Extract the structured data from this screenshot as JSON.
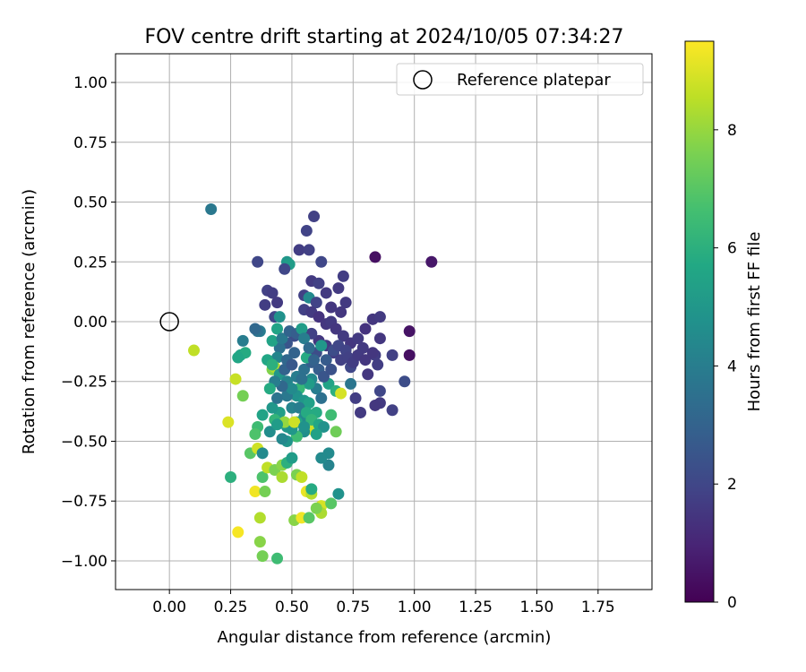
{
  "chart_data": {
    "type": "scatter",
    "title": "FOV centre drift starting at 2024/10/05 07:34:27",
    "xlabel": "Angular distance from reference (arcmin)",
    "ylabel": "Rotation from reference (arcmin)",
    "xlim": [
      -0.22,
      1.97
    ],
    "ylim": [
      -1.12,
      1.12
    ],
    "xticks": [
      "0.00",
      "0.25",
      "0.50",
      "0.75",
      "1.00",
      "1.25",
      "1.50",
      "1.75"
    ],
    "yticks": [
      "1.00",
      "0.75",
      "0.50",
      "0.25",
      "0.00",
      "−0.25",
      "−0.50",
      "−0.75",
      "−1.00"
    ],
    "grid": true,
    "legend": {
      "position": "top-right",
      "label": "Reference platepar"
    },
    "colorbar": {
      "label": "Hours from first FF file",
      "min": 0,
      "max": 9.5,
      "ticks": [
        "0",
        "2",
        "4",
        "6",
        "8"
      ],
      "colormap": "viridis"
    },
    "reference_point": {
      "x": 0.0,
      "y": 0.0
    },
    "points": [
      [
        0.17,
        0.47,
        3.8
      ],
      [
        0.1,
        -0.12,
        8.6
      ],
      [
        0.59,
        0.44,
        1.8
      ],
      [
        0.56,
        0.38,
        1.9
      ],
      [
        0.53,
        0.3,
        1.7
      ],
      [
        0.57,
        0.3,
        1.8
      ],
      [
        0.36,
        0.25,
        2.0
      ],
      [
        0.62,
        0.25,
        2.0
      ],
      [
        0.48,
        0.25,
        5.0
      ],
      [
        0.49,
        0.24,
        5.2
      ],
      [
        0.47,
        0.22,
        2.0
      ],
      [
        0.58,
        0.17,
        1.6
      ],
      [
        0.61,
        0.16,
        1.8
      ],
      [
        0.69,
        0.14,
        1.6
      ],
      [
        0.71,
        0.19,
        1.7
      ],
      [
        0.64,
        0.12,
        1.6
      ],
      [
        0.55,
        0.11,
        1.8
      ],
      [
        0.57,
        0.1,
        4.5
      ],
      [
        0.6,
        0.08,
        1.9
      ],
      [
        0.66,
        0.06,
        1.5
      ],
      [
        0.7,
        0.04,
        1.5
      ],
      [
        0.72,
        0.08,
        1.6
      ],
      [
        0.4,
        0.13,
        1.8
      ],
      [
        0.42,
        0.12,
        1.7
      ],
      [
        0.44,
        0.08,
        1.6
      ],
      [
        0.39,
        0.07,
        1.7
      ],
      [
        0.43,
        0.02,
        2.0
      ],
      [
        0.45,
        0.02,
        4.8
      ],
      [
        0.55,
        0.05,
        1.8
      ],
      [
        0.58,
        0.04,
        1.6
      ],
      [
        0.61,
        0.02,
        1.4
      ],
      [
        0.64,
        -0.01,
        1.5
      ],
      [
        0.66,
        0.0,
        1.6
      ],
      [
        0.68,
        -0.03,
        1.5
      ],
      [
        0.71,
        -0.06,
        1.6
      ],
      [
        0.74,
        -0.09,
        1.5
      ],
      [
        0.77,
        -0.07,
        1.6
      ],
      [
        0.8,
        -0.03,
        1.4
      ],
      [
        0.83,
        0.01,
        1.5
      ],
      [
        0.86,
        0.02,
        1.6
      ],
      [
        0.86,
        -0.07,
        1.5
      ],
      [
        0.79,
        -0.11,
        1.6
      ],
      [
        0.84,
        -0.14,
        1.7
      ],
      [
        0.91,
        -0.14,
        1.8
      ],
      [
        0.98,
        -0.04,
        0.5
      ],
      [
        0.98,
        -0.14,
        0.4
      ],
      [
        0.84,
        0.27,
        0.4
      ],
      [
        1.07,
        0.25,
        0.6
      ],
      [
        0.81,
        -0.22,
        1.5
      ],
      [
        0.86,
        -0.29,
        2.0
      ],
      [
        0.96,
        -0.25,
        2.2
      ],
      [
        0.91,
        -0.37,
        1.8
      ],
      [
        0.86,
        -0.34,
        1.6
      ],
      [
        0.84,
        -0.35,
        1.5
      ],
      [
        0.78,
        -0.38,
        1.6
      ],
      [
        0.76,
        -0.32,
        1.7
      ],
      [
        0.74,
        -0.26,
        3.7
      ],
      [
        0.74,
        -0.19,
        2.0
      ],
      [
        0.7,
        -0.16,
        1.8
      ],
      [
        0.67,
        -0.13,
        1.7
      ],
      [
        0.64,
        -0.1,
        1.6
      ],
      [
        0.61,
        -0.08,
        1.5
      ],
      [
        0.58,
        -0.05,
        1.8
      ],
      [
        0.54,
        -0.04,
        2.0
      ],
      [
        0.51,
        -0.06,
        2.2
      ],
      [
        0.48,
        -0.09,
        2.5
      ],
      [
        0.45,
        -0.11,
        3.5
      ],
      [
        0.44,
        -0.15,
        4.3
      ],
      [
        0.42,
        -0.08,
        5.5
      ],
      [
        0.44,
        -0.03,
        5.5
      ],
      [
        0.4,
        -0.16,
        5.6
      ],
      [
        0.42,
        -0.2,
        7.7
      ],
      [
        0.43,
        -0.19,
        8.4
      ],
      [
        0.45,
        -0.22,
        5.0
      ],
      [
        0.48,
        -0.25,
        4.2
      ],
      [
        0.52,
        -0.23,
        4.0
      ],
      [
        0.55,
        -0.2,
        3.5
      ],
      [
        0.58,
        -0.17,
        2.8
      ],
      [
        0.6,
        -0.13,
        2.2
      ],
      [
        0.62,
        -0.1,
        5.0
      ],
      [
        0.56,
        -0.15,
        5.8
      ],
      [
        0.58,
        -0.24,
        4.5
      ],
      [
        0.6,
        -0.28,
        4.0
      ],
      [
        0.62,
        -0.32,
        3.5
      ],
      [
        0.65,
        -0.26,
        5.5
      ],
      [
        0.68,
        -0.29,
        6.0
      ],
      [
        0.7,
        -0.3,
        8.9
      ],
      [
        0.66,
        -0.39,
        6.5
      ],
      [
        0.68,
        -0.46,
        7.4
      ],
      [
        0.58,
        -0.45,
        8.8
      ],
      [
        0.6,
        -0.38,
        5.8
      ],
      [
        0.55,
        -0.4,
        4.5
      ],
      [
        0.52,
        -0.42,
        5.5
      ],
      [
        0.5,
        -0.36,
        4.2
      ],
      [
        0.48,
        -0.44,
        5.0
      ],
      [
        0.45,
        -0.38,
        5.3
      ],
      [
        0.43,
        -0.41,
        6.2
      ],
      [
        0.41,
        -0.46,
        4.6
      ],
      [
        0.38,
        -0.39,
        5.5
      ],
      [
        0.36,
        -0.44,
        6.5
      ],
      [
        0.35,
        -0.47,
        6.8
      ],
      [
        0.33,
        -0.55,
        7.0
      ],
      [
        0.36,
        -0.53,
        8.8
      ],
      [
        0.38,
        -0.55,
        4.5
      ],
      [
        0.3,
        -0.08,
        4.0
      ],
      [
        0.29,
        -0.14,
        5.5
      ],
      [
        0.31,
        -0.13,
        5.8
      ],
      [
        0.28,
        -0.15,
        5.6
      ],
      [
        0.27,
        -0.24,
        8.7
      ],
      [
        0.3,
        -0.31,
        7.5
      ],
      [
        0.24,
        -0.42,
        9.0
      ],
      [
        0.25,
        -0.65,
        6.0
      ],
      [
        0.28,
        -0.88,
        9.4
      ],
      [
        0.35,
        -0.71,
        9.3
      ],
      [
        0.38,
        -0.65,
        6.8
      ],
      [
        0.39,
        -0.71,
        7.5
      ],
      [
        0.4,
        -0.61,
        8.6
      ],
      [
        0.43,
        -0.62,
        7.6
      ],
      [
        0.46,
        -0.6,
        7.8
      ],
      [
        0.46,
        -0.65,
        8.3
      ],
      [
        0.48,
        -0.59,
        6.0
      ],
      [
        0.5,
        -0.57,
        5.2
      ],
      [
        0.52,
        -0.64,
        7.6
      ],
      [
        0.54,
        -0.65,
        8.6
      ],
      [
        0.56,
        -0.71,
        9.2
      ],
      [
        0.58,
        -0.72,
        8.4
      ],
      [
        0.58,
        -0.7,
        5.8
      ],
      [
        0.62,
        -0.77,
        8.9
      ],
      [
        0.62,
        -0.8,
        8.3
      ],
      [
        0.6,
        -0.78,
        7.6
      ],
      [
        0.66,
        -0.76,
        7.0
      ],
      [
        0.69,
        -0.72,
        4.8
      ],
      [
        0.65,
        -0.6,
        4.2
      ],
      [
        0.65,
        -0.55,
        4.5
      ],
      [
        0.62,
        -0.57,
        4.5
      ],
      [
        0.51,
        -0.83,
        7.8
      ],
      [
        0.54,
        -0.82,
        9.3
      ],
      [
        0.57,
        -0.82,
        7.0
      ],
      [
        0.37,
        -0.92,
        7.8
      ],
      [
        0.37,
        -0.82,
        8.4
      ],
      [
        0.38,
        -0.98,
        7.5
      ],
      [
        0.44,
        -0.99,
        6.5
      ],
      [
        0.37,
        -0.04,
        4.0
      ],
      [
        0.36,
        -0.04,
        3.6
      ],
      [
        0.35,
        -0.03,
        3.2
      ],
      [
        0.46,
        -0.07,
        3.8
      ],
      [
        0.49,
        -0.04,
        3.0
      ],
      [
        0.52,
        -0.05,
        2.8
      ],
      [
        0.54,
        -0.03,
        5.2
      ],
      [
        0.55,
        -0.07,
        4.0
      ],
      [
        0.57,
        -0.11,
        3.3
      ],
      [
        0.59,
        -0.16,
        3.0
      ],
      [
        0.61,
        -0.2,
        2.8
      ],
      [
        0.63,
        -0.23,
        2.5
      ],
      [
        0.64,
        -0.16,
        2.7
      ],
      [
        0.66,
        -0.2,
        2.4
      ],
      [
        0.67,
        -0.12,
        2.2
      ],
      [
        0.69,
        -0.1,
        2.0
      ],
      [
        0.72,
        -0.12,
        1.9
      ],
      [
        0.73,
        -0.15,
        1.8
      ],
      [
        0.75,
        -0.17,
        1.7
      ],
      [
        0.77,
        -0.14,
        1.6
      ],
      [
        0.8,
        -0.16,
        1.5
      ],
      [
        0.83,
        -0.13,
        1.5
      ],
      [
        0.85,
        -0.18,
        1.7
      ],
      [
        0.57,
        -0.26,
        5.2
      ],
      [
        0.53,
        -0.28,
        6.3
      ],
      [
        0.52,
        -0.31,
        4.8
      ],
      [
        0.55,
        -0.33,
        5.0
      ],
      [
        0.57,
        -0.34,
        5.4
      ],
      [
        0.53,
        -0.36,
        4.0
      ],
      [
        0.56,
        -0.38,
        5.8
      ],
      [
        0.58,
        -0.41,
        6.2
      ],
      [
        0.61,
        -0.43,
        5.6
      ],
      [
        0.63,
        -0.44,
        4.8
      ],
      [
        0.6,
        -0.47,
        5.4
      ],
      [
        0.55,
        -0.46,
        4.6
      ],
      [
        0.52,
        -0.48,
        6.5
      ],
      [
        0.5,
        -0.45,
        5.0
      ],
      [
        0.48,
        -0.5,
        4.9
      ],
      [
        0.46,
        -0.49,
        4.4
      ],
      [
        0.47,
        -0.42,
        8.0
      ],
      [
        0.51,
        -0.42,
        8.8
      ],
      [
        0.55,
        -0.44,
        4.8
      ],
      [
        0.44,
        -0.43,
        5.2
      ],
      [
        0.42,
        -0.36,
        5.0
      ],
      [
        0.48,
        -0.31,
        3.8
      ],
      [
        0.5,
        -0.28,
        4.5
      ],
      [
        0.54,
        -0.24,
        3.5
      ],
      [
        0.47,
        -0.2,
        3.0
      ],
      [
        0.48,
        -0.16,
        3.2
      ],
      [
        0.51,
        -0.13,
        3.0
      ],
      [
        0.5,
        -0.18,
        2.6
      ],
      [
        0.46,
        -0.27,
        3.2
      ],
      [
        0.43,
        -0.25,
        4.0
      ],
      [
        0.44,
        -0.32,
        3.6
      ],
      [
        0.41,
        -0.28,
        5.8
      ],
      [
        0.42,
        -0.18,
        6.0
      ]
    ]
  }
}
